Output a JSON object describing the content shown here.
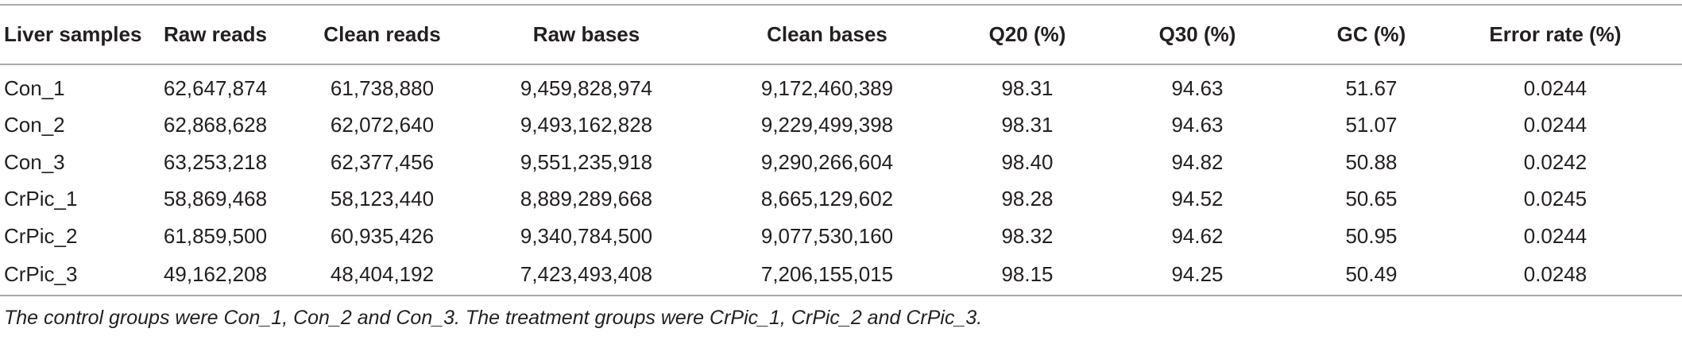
{
  "table": {
    "headers": [
      "Liver samples",
      "Raw reads",
      "Clean reads",
      "Raw bases",
      "Clean bases",
      "Q20 (%)",
      "Q30 (%)",
      "GC (%)",
      "Error rate (%)"
    ],
    "rows": [
      [
        "Con_1",
        "62,647,874",
        "61,738,880",
        "9,459,828,974",
        "9,172,460,389",
        "98.31",
        "94.63",
        "51.67",
        "0.0244"
      ],
      [
        "Con_2",
        "62,868,628",
        "62,072,640",
        "9,493,162,828",
        "9,229,499,398",
        "98.31",
        "94.63",
        "51.07",
        "0.0244"
      ],
      [
        "Con_3",
        "63,253,218",
        "62,377,456",
        "9,551,235,918",
        "9,290,266,604",
        "98.40",
        "94.82",
        "50.88",
        "0.0242"
      ],
      [
        "CrPic_1",
        "58,869,468",
        "58,123,440",
        "8,889,289,668",
        "8,665,129,602",
        "98.28",
        "94.52",
        "50.65",
        "0.0245"
      ],
      [
        "CrPic_2",
        "61,859,500",
        "60,935,426",
        "9,340,784,500",
        "9,077,530,160",
        "98.32",
        "94.62",
        "50.95",
        "0.0244"
      ],
      [
        "CrPic_3",
        "49,162,208",
        "48,404,192",
        "7,423,493,408",
        "7,206,155,015",
        "98.15",
        "94.25",
        "50.49",
        "0.0248"
      ]
    ]
  },
  "footnote": "The control groups were Con_1, Con_2 and Con_3. The treatment groups were CrPic_1, CrPic_2 and CrPic_3."
}
